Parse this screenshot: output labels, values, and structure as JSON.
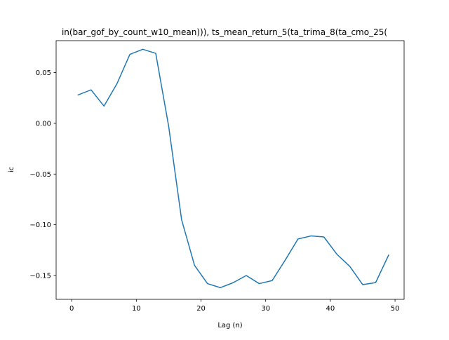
{
  "chart_data": {
    "type": "line",
    "title": "in(bar_gof_by_count_w10_mean))), ts_mean_return_5(ta_trima_8(ta_cmo_25(",
    "xlabel": "Lag (n)",
    "ylabel": "ic",
    "xlim": [
      -2.4,
      51.4
    ],
    "ylim": [
      -0.1735,
      0.0815
    ],
    "xticks": [
      0,
      10,
      20,
      30,
      40,
      50
    ],
    "xtick_labels": [
      "0",
      "10",
      "20",
      "30",
      "40",
      "50"
    ],
    "yticks": [
      0.05,
      0.0,
      -0.05,
      -0.1,
      -0.15
    ],
    "ytick_labels": [
      "0.05",
      "0.00",
      "−0.05",
      "−0.10",
      "−0.15"
    ],
    "grid": false,
    "series": [
      {
        "color": "#1f77b4",
        "x": [
          1,
          3,
          5,
          7,
          9,
          11,
          13,
          15,
          17,
          19,
          21,
          23,
          25,
          27,
          29,
          31,
          33,
          35,
          37,
          39,
          41,
          43,
          45,
          47,
          49
        ],
        "y": [
          0.028,
          0.033,
          0.017,
          0.039,
          0.068,
          0.073,
          0.069,
          -0.003,
          -0.095,
          -0.14,
          -0.158,
          -0.162,
          -0.157,
          -0.15,
          -0.158,
          -0.155,
          -0.135,
          -0.114,
          -0.111,
          -0.112,
          -0.129,
          -0.141,
          -0.159,
          -0.157,
          -0.13
        ]
      }
    ]
  }
}
